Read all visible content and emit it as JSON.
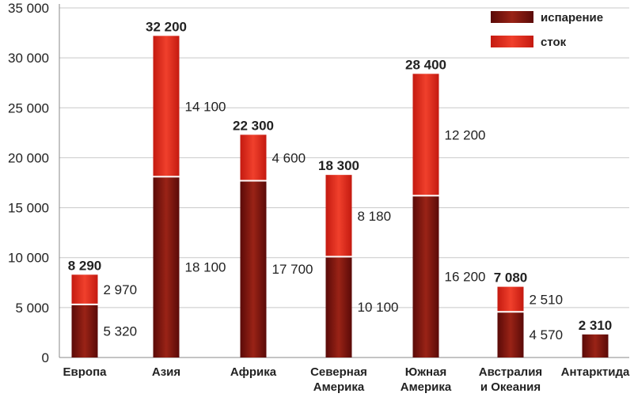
{
  "chart_data": {
    "type": "bar",
    "stacked": true,
    "categories": [
      [
        "Европа"
      ],
      [
        "Азия"
      ],
      [
        "Африка"
      ],
      [
        "Северная",
        "Америка"
      ],
      [
        "Южная",
        "Америка"
      ],
      [
        "Австралия",
        "и Океания"
      ],
      [
        "Антарктида"
      ]
    ],
    "series": [
      {
        "name": "испарение",
        "values": [
          5320,
          18100,
          17700,
          10100,
          16200,
          4570,
          2310
        ],
        "labels": [
          "5 320",
          "18 100",
          "17 700",
          "10 100",
          "16 200",
          "4 570",
          null
        ],
        "color_dark": "#5a0a08",
        "color_light": "#9a2316"
      },
      {
        "name": "сток",
        "values": [
          2970,
          14100,
          4600,
          8180,
          12200,
          2510,
          0
        ],
        "labels": [
          "2 970",
          "14 100",
          "4 600",
          "8 180",
          "12 200",
          "2 510",
          null
        ],
        "color_dark": "#c41a10",
        "color_light": "#f0402c"
      }
    ],
    "totals": [
      8290,
      32200,
      22300,
      18300,
      28400,
      7080,
      2310
    ],
    "total_labels": [
      "8 290",
      "32 200",
      "22 300",
      "18 300",
      "28 400",
      "7 080",
      "2 310"
    ],
    "yticks": [
      0,
      5000,
      10000,
      15000,
      20000,
      25000,
      30000,
      35000
    ],
    "ytick_labels": [
      "0",
      "5 000",
      "10 000",
      "15 000",
      "20 000",
      "25 000",
      "30 000",
      "35 000"
    ],
    "ylim": [
      0,
      35000
    ],
    "grid": true,
    "legend_position": "top-right",
    "title": "",
    "xlabel": "",
    "ylabel": ""
  }
}
